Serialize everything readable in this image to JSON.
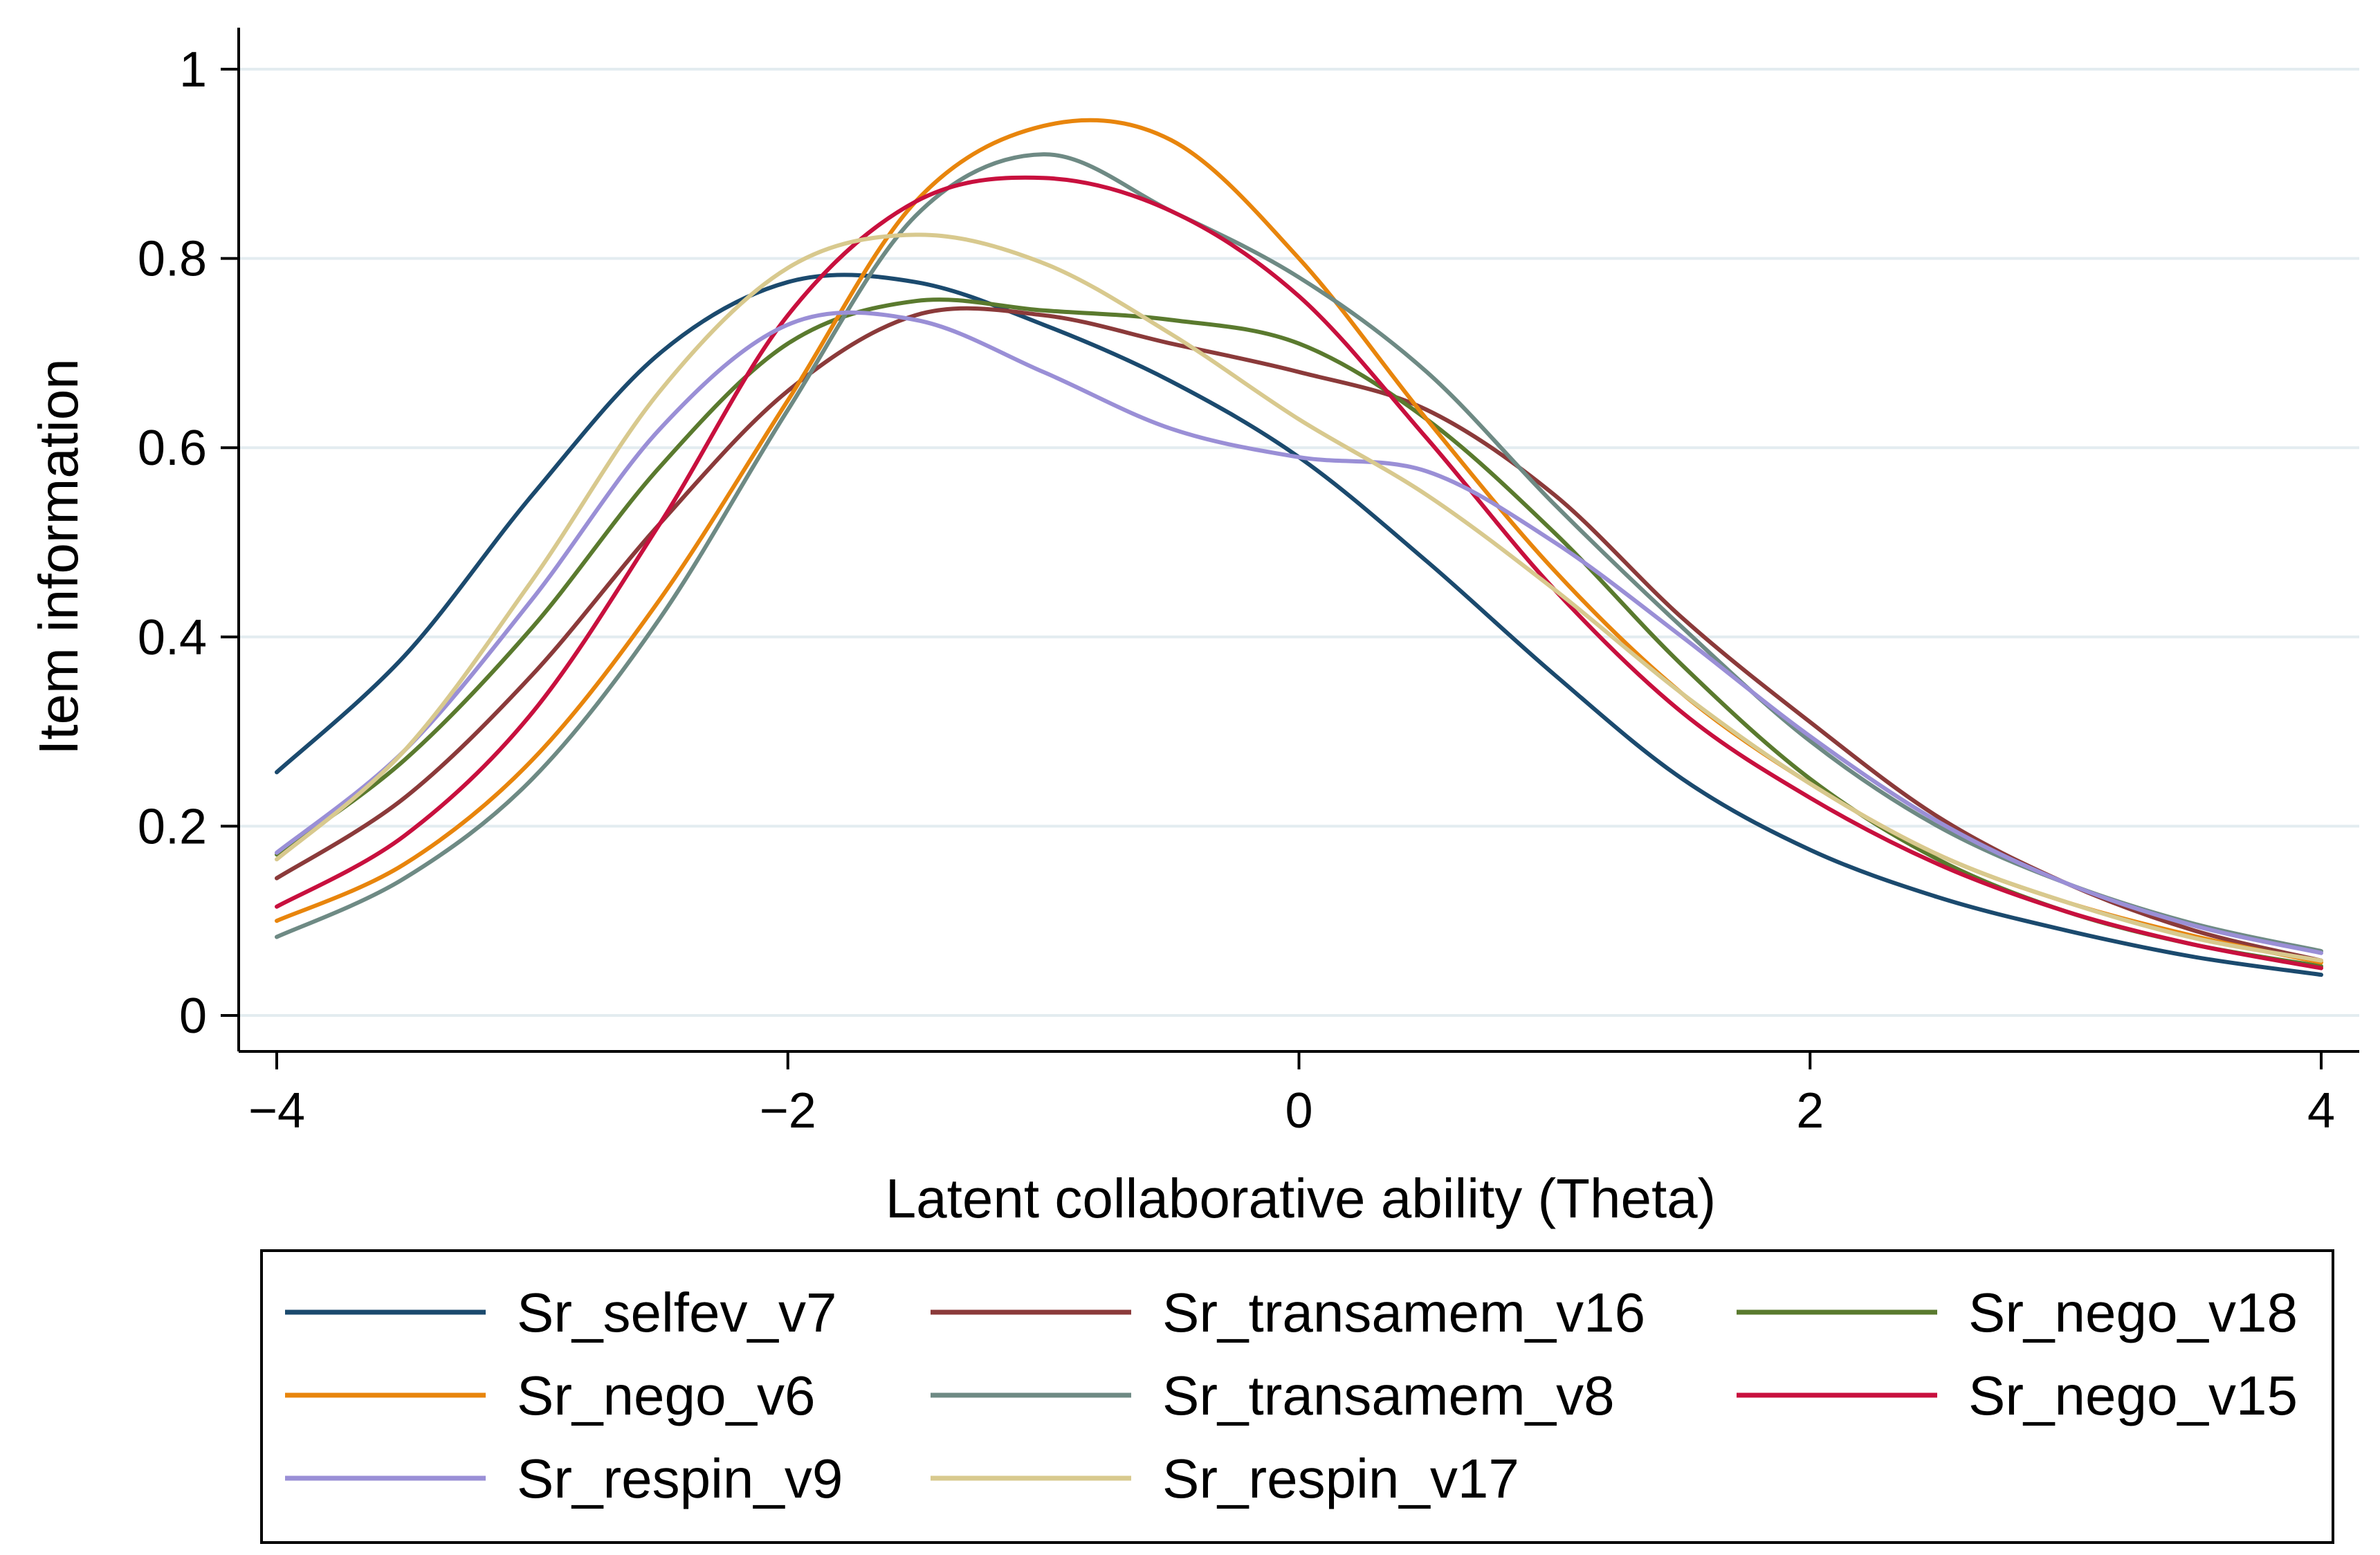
{
  "chart_data": {
    "type": "line",
    "title": "",
    "xlabel": "Latent collaborative ability (Theta)",
    "ylabel": "Item information",
    "xlim": [
      -4,
      4
    ],
    "ylim": [
      0,
      1
    ],
    "x_ticks": [
      -4,
      -2,
      0,
      2,
      4
    ],
    "x_tick_labels": [
      "−4",
      "−2",
      "0",
      "2",
      "4"
    ],
    "y_ticks": [
      0,
      0.2,
      0.4,
      0.6,
      0.8,
      1
    ],
    "y_tick_labels": [
      "0",
      "0.2",
      "0.4",
      "0.6",
      "0.8",
      "1"
    ],
    "grid": "horizontal",
    "legend_position": "bottom",
    "x": [
      -4,
      -3.5,
      -3,
      -2.5,
      -2,
      -1.5,
      -1,
      -0.5,
      0,
      0.5,
      1,
      1.5,
      2,
      2.5,
      3,
      3.5,
      4
    ],
    "series": [
      {
        "name": "Sr_selfev_v7",
        "color": "#1b4a6e",
        "values": [
          0.257,
          0.38,
          0.55,
          0.7,
          0.775,
          0.775,
          0.73,
          0.67,
          0.59,
          0.48,
          0.36,
          0.25,
          0.175,
          0.125,
          0.09,
          0.062,
          0.043
        ]
      },
      {
        "name": "Sr_transamem_v16",
        "color": "#8b3a3a",
        "values": [
          0.145,
          0.23,
          0.36,
          0.52,
          0.66,
          0.74,
          0.74,
          0.71,
          0.68,
          0.64,
          0.55,
          0.42,
          0.31,
          0.21,
          0.14,
          0.09,
          0.058
        ]
      },
      {
        "name": "Sr_nego_v18",
        "color": "#5a7a2e",
        "values": [
          0.17,
          0.27,
          0.41,
          0.58,
          0.71,
          0.755,
          0.745,
          0.735,
          0.71,
          0.63,
          0.51,
          0.37,
          0.25,
          0.165,
          0.11,
          0.075,
          0.052
        ]
      },
      {
        "name": "Sr_nego_v6",
        "color": "#e8850c",
        "values": [
          0.1,
          0.16,
          0.27,
          0.44,
          0.65,
          0.86,
          0.94,
          0.925,
          0.8,
          0.63,
          0.47,
          0.34,
          0.245,
          0.17,
          0.12,
          0.084,
          0.056
        ]
      },
      {
        "name": "Sr_transamem_v8",
        "color": "#6e8a84",
        "values": [
          0.083,
          0.145,
          0.25,
          0.42,
          0.64,
          0.845,
          0.91,
          0.85,
          0.78,
          0.68,
          0.54,
          0.41,
          0.29,
          0.2,
          0.14,
          0.097,
          0.068
        ]
      },
      {
        "name": "Sr_nego_v15",
        "color": "#c8103e",
        "values": [
          0.115,
          0.19,
          0.32,
          0.52,
          0.74,
          0.86,
          0.885,
          0.85,
          0.76,
          0.61,
          0.45,
          0.32,
          0.23,
          0.16,
          0.11,
          0.075,
          0.05
        ]
      },
      {
        "name": "Sr_respin_v9",
        "color": "#9a8fd6",
        "values": [
          0.172,
          0.28,
          0.44,
          0.62,
          0.73,
          0.735,
          0.68,
          0.62,
          0.59,
          0.575,
          0.5,
          0.4,
          0.295,
          0.205,
          0.14,
          0.095,
          0.066
        ]
      },
      {
        "name": "Sr_respin_v17",
        "color": "#d8c98e",
        "values": [
          0.165,
          0.28,
          0.46,
          0.66,
          0.79,
          0.825,
          0.795,
          0.72,
          0.63,
          0.55,
          0.45,
          0.34,
          0.245,
          0.17,
          0.12,
          0.082,
          0.058
        ]
      }
    ]
  }
}
